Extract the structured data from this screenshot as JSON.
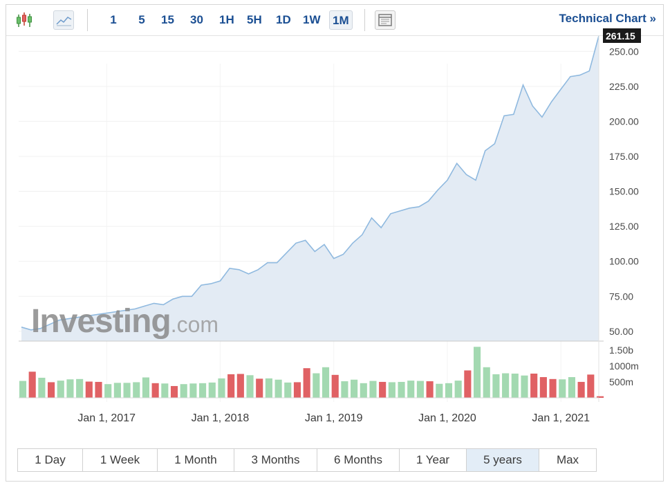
{
  "toolbar": {
    "timeframes": [
      "1",
      "5",
      "15",
      "30",
      "1H",
      "5H",
      "1D",
      "1W",
      "1M"
    ],
    "active_timeframe": "1M",
    "technical_link": "Technical Chart »",
    "icons": [
      "candlestick-icon",
      "line-chart-icon",
      "layout-icon"
    ]
  },
  "watermark": {
    "brand": "Investing",
    "suffix": ".com"
  },
  "period_buttons": [
    "1 Day",
    "1 Week",
    "1 Month",
    "3 Months",
    "6 Months",
    "1 Year",
    "5 years",
    "Max"
  ],
  "active_period": "5 years",
  "colors": {
    "line": "#8fb9df",
    "area": "#e3ebf4",
    "vol_up": "#a3d9b1",
    "vol_down": "#e06164",
    "accent": "#1b4f93",
    "price_tag": "#1a1a1a"
  },
  "chart_data": [
    {
      "type": "area",
      "last_price_label": "261.15",
      "y_ticks": [
        "50.00",
        "75.00",
        "100.00",
        "125.00",
        "150.00",
        "175.00",
        "200.00",
        "225.00",
        "250.00"
      ],
      "ylim": [
        43,
        261
      ],
      "x_ticks": [
        "Jan 1, 2017",
        "Jan 1, 2018",
        "Jan 1, 2019",
        "Jan 1, 2020",
        "Jan 1, 2021"
      ],
      "x_start": "2016-04",
      "x_end": "2021-05",
      "values": [
        53,
        51,
        52,
        55,
        58,
        59,
        60,
        61,
        62,
        63,
        64,
        65,
        66,
        68,
        70,
        69,
        73,
        75,
        75,
        83,
        84,
        86,
        95,
        94,
        91,
        94,
        99,
        99,
        106,
        113,
        115,
        107,
        112,
        102,
        105,
        113,
        119,
        131,
        124,
        134,
        136,
        138,
        139,
        143,
        151,
        158,
        170,
        162,
        158,
        179,
        184,
        204,
        205,
        226,
        211,
        203,
        214,
        223,
        232,
        233,
        236,
        261
      ],
      "grid": true
    },
    {
      "type": "bar",
      "y_ticks": [
        "500m",
        "1000m",
        "1.50b"
      ],
      "volume_millions": [
        530,
        820,
        630,
        490,
        540,
        580,
        590,
        510,
        500,
        430,
        470,
        470,
        490,
        640,
        460,
        450,
        370,
        430,
        450,
        460,
        480,
        610,
        740,
        750,
        710,
        600,
        610,
        570,
        480,
        490,
        930,
        770,
        960,
        720,
        520,
        570,
        460,
        530,
        500,
        490,
        500,
        540,
        530,
        520,
        440,
        460,
        540,
        860,
        1600,
        960,
        740,
        770,
        760,
        700,
        760,
        650,
        590,
        580,
        650,
        500,
        730,
        50
      ],
      "down": [
        1,
        3,
        7,
        8,
        14,
        16,
        22,
        23,
        25,
        29,
        30,
        33,
        38,
        43,
        47,
        54,
        55,
        56,
        59,
        60,
        61
      ],
      "grid": true
    }
  ]
}
